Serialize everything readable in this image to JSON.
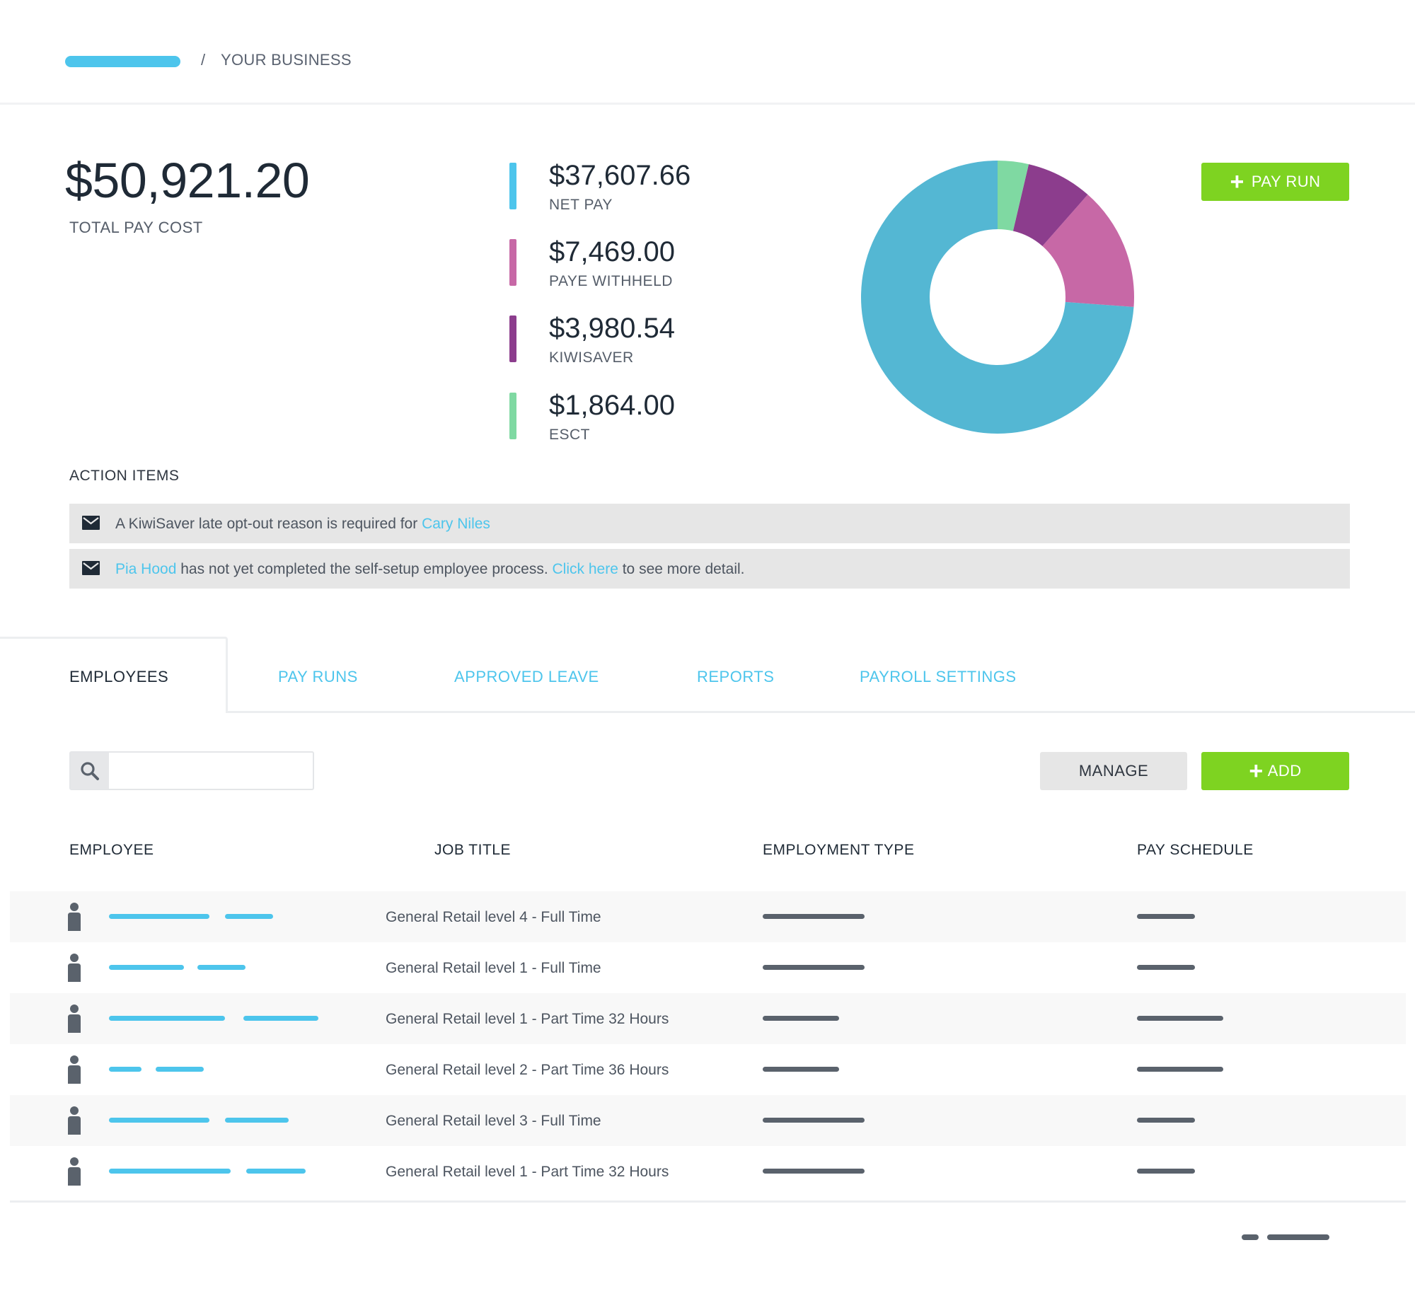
{
  "header": {
    "separator": "/",
    "business": "YOUR BUSINESS"
  },
  "summary": {
    "total_amount": "$50,921.20",
    "total_label": "TOTAL PAY COST",
    "breakdown": [
      {
        "amount": "$37,607.66",
        "label": "NET PAY",
        "color": "#4dc5ec"
      },
      {
        "amount": "$7,469.00",
        "label": "PAYE WITHHELD",
        "color": "#c768a6"
      },
      {
        "amount": "$3,980.54",
        "label": "KIWISAVER",
        "color": "#8c3d8d"
      },
      {
        "amount": "$1,864.00",
        "label": "ESCT",
        "color": "#7fd9a2"
      }
    ]
  },
  "chart_data": {
    "type": "pie",
    "values": [
      37607.66,
      7469.0,
      3980.54,
      1864.0
    ],
    "colors": [
      "#54b7d3",
      "#c768a6",
      "#8c3d8d",
      "#7fd9a2"
    ]
  },
  "buttons": {
    "pay_run": "PAY RUN",
    "manage": "MANAGE",
    "add": "ADD",
    "plus": "+"
  },
  "action_items": {
    "title": "ACTION ITEMS",
    "items": [
      {
        "pre": "A KiwiSaver late opt-out reason is required for ",
        "link": "Cary Niles"
      },
      {
        "link": "Pia Hood",
        "mid": " has not yet completed the self-setup employee process. ",
        "link2": "Click here",
        "post": " to see more detail."
      }
    ]
  },
  "tabs": [
    "EMPLOYEES",
    "PAY RUNS",
    "APPROVED LEAVE",
    "REPORTS",
    "PAYROLL SETTINGS"
  ],
  "search": {
    "placeholder": "",
    "value": ""
  },
  "table": {
    "columns": [
      "EMPLOYEE",
      "JOB TITLE",
      "EMPLOYMENT TYPE",
      "PAY SCHEDULE"
    ],
    "rows": [
      "General Retail level 4 - Full Time",
      "General Retail level 1 - Full Time",
      "General Retail level 1 - Part Time 32 Hours",
      "General Retail level 2 - Part Time 36 Hours",
      "General Retail level 3 - Full Time",
      "General Retail level 1 - Part Time 32 Hours"
    ]
  },
  "icons": {
    "search": "search-icon",
    "mail": "envelope-icon",
    "person": "person-icon",
    "plus": "plus-icon"
  }
}
